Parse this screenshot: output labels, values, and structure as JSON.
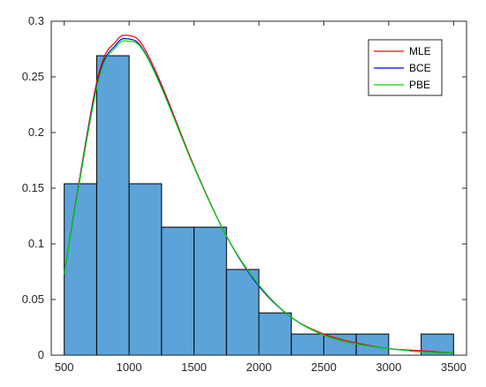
{
  "chart_data": {
    "type": "bar",
    "subtype": "histogram-with-density-curves",
    "bins": [
      {
        "x0": 500,
        "x1": 750,
        "value": 0.154
      },
      {
        "x0": 750,
        "x1": 1000,
        "value": 0.269
      },
      {
        "x0": 1000,
        "x1": 1250,
        "value": 0.154
      },
      {
        "x0": 1250,
        "x1": 1500,
        "value": 0.115
      },
      {
        "x0": 1500,
        "x1": 1750,
        "value": 0.115
      },
      {
        "x0": 1750,
        "x1": 2000,
        "value": 0.077
      },
      {
        "x0": 2000,
        "x1": 2250,
        "value": 0.038
      },
      {
        "x0": 2250,
        "x1": 2500,
        "value": 0.019
      },
      {
        "x0": 2500,
        "x1": 2750,
        "value": 0.019
      },
      {
        "x0": 2750,
        "x1": 3000,
        "value": 0.019
      },
      {
        "x0": 3000,
        "x1": 3250,
        "value": 0
      },
      {
        "x0": 3250,
        "x1": 3500,
        "value": 0.019
      }
    ],
    "series": [
      {
        "name": "MLE",
        "color": "#ff0000",
        "x": [
          500,
          750,
          900,
          1000,
          1100,
          1250,
          1500,
          1750,
          2000,
          2250,
          2500,
          2750,
          3000,
          3250,
          3500
        ],
        "y": [
          0.073,
          0.245,
          0.282,
          0.287,
          0.279,
          0.243,
          0.17,
          0.107,
          0.062,
          0.034,
          0.019,
          0.011,
          0.006,
          0.004,
          0.002
        ]
      },
      {
        "name": "BCE",
        "color": "#0000ff",
        "x": [
          500,
          750,
          900,
          1000,
          1100,
          1250,
          1500,
          1750,
          2000,
          2250,
          2500,
          2750,
          3000,
          3250,
          3500
        ],
        "y": [
          0.073,
          0.242,
          0.279,
          0.284,
          0.276,
          0.241,
          0.169,
          0.107,
          0.062,
          0.034,
          0.018,
          0.01,
          0.006,
          0.003,
          0.002
        ]
      },
      {
        "name": "PBE",
        "color": "#00dd00",
        "x": [
          500,
          750,
          900,
          1000,
          1100,
          1250,
          1500,
          1750,
          2000,
          2250,
          2500,
          2750,
          3000,
          3250,
          3500
        ],
        "y": [
          0.073,
          0.24,
          0.277,
          0.282,
          0.275,
          0.24,
          0.169,
          0.107,
          0.063,
          0.034,
          0.018,
          0.01,
          0.006,
          0.003,
          0.002
        ]
      }
    ],
    "bar_color": "#5ba3d9",
    "x_ticks": [
      500,
      1000,
      1500,
      2000,
      2500,
      3000,
      3500
    ],
    "x_tick_labels": [
      "500",
      "1000",
      "1500",
      "2000",
      "2500",
      "3000",
      "3500"
    ],
    "y_ticks": [
      0,
      0.05,
      0.1,
      0.15,
      0.2,
      0.25,
      0.3
    ],
    "y_tick_labels": [
      "0",
      "0.05",
      "0.1",
      "0.15",
      "0.2",
      "0.25",
      "0.3"
    ],
    "xlim": [
      400,
      3600
    ],
    "ylim": [
      0,
      0.3
    ],
    "grid": false,
    "legend_position": "top-right",
    "title": "",
    "xlabel": "",
    "ylabel": ""
  }
}
